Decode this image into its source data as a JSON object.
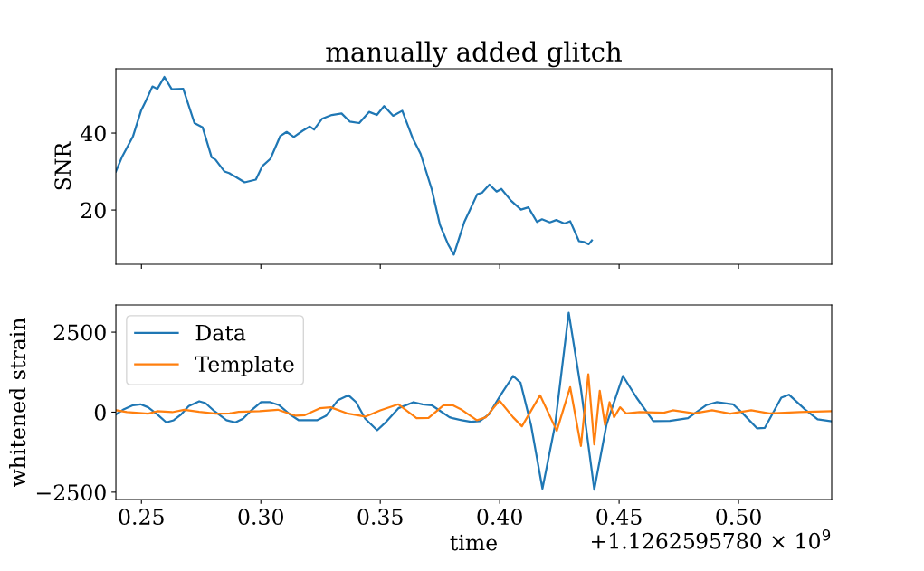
{
  "chart_data": [
    {
      "type": "line",
      "title": "manually added glitch",
      "ylabel": "SNR",
      "tick_labels": "y",
      "grid": false,
      "legend": false,
      "xlim": [
        0.2393,
        0.539
      ],
      "xticks": [
        0.25,
        0.3,
        0.35,
        0.4,
        0.45,
        0.5
      ],
      "ylim": [
        5.9,
        56.7
      ],
      "yticks": [
        20,
        40
      ],
      "series": [
        {
          "color": "#1f77b4",
          "x": [
            0.2393,
            0.2418,
            0.2465,
            0.2499,
            0.2519,
            0.2546,
            0.2567,
            0.2596,
            0.2627,
            0.2675,
            0.2722,
            0.2756,
            0.2794,
            0.281,
            0.2848,
            0.2867,
            0.2898,
            0.2932,
            0.2979,
            0.3006,
            0.304,
            0.3081,
            0.3108,
            0.3138,
            0.3175,
            0.3205,
            0.3223,
            0.3256,
            0.3297,
            0.3338,
            0.3372,
            0.3412,
            0.3453,
            0.3486,
            0.3516,
            0.3554,
            0.3592,
            0.3635,
            0.3669,
            0.3716,
            0.375,
            0.3784,
            0.3808,
            0.3852,
            0.3906,
            0.3926,
            0.3957,
            0.3987,
            0.4007,
            0.4048,
            0.4089,
            0.412,
            0.4156,
            0.4177,
            0.421,
            0.4237,
            0.4271,
            0.4295,
            0.4332,
            0.4352,
            0.4373,
            0.4386
          ],
          "values": [
            30.0,
            33.7,
            39.2,
            45.9,
            48.4,
            52.1,
            51.5,
            54.6,
            51.4,
            51.5,
            42.6,
            41.5,
            33.7,
            33.1,
            30.0,
            29.6,
            28.5,
            27.2,
            27.9,
            31.4,
            33.3,
            39.2,
            40.3,
            39.0,
            40.6,
            41.7,
            40.9,
            43.7,
            44.7,
            45.1,
            43.0,
            42.6,
            45.5,
            44.7,
            47.0,
            44.5,
            45.8,
            38.8,
            34.6,
            25.3,
            16.1,
            11.1,
            8.4,
            16.9,
            24.1,
            24.5,
            26.6,
            24.8,
            25.5,
            22.4,
            20.1,
            20.7,
            16.9,
            17.6,
            16.8,
            17.4,
            16.5,
            17.1,
            11.9,
            11.7,
            11.1,
            12.1
          ]
        }
      ]
    },
    {
      "type": "line",
      "xlabel": "time",
      "ylabel": "whitened strain",
      "grid": false,
      "legend": "top left",
      "xlim": [
        0.2393,
        0.539
      ],
      "xticks": [
        0.25,
        {
          "value": 0.3,
          "label": "0.30"
        },
        0.35,
        {
          "value": 0.4,
          "label": "0.40"
        },
        0.45,
        {
          "value": 0.5,
          "label": "0.50"
        }
      ],
      "ylim": [
        -2730,
        3350
      ],
      "yticks": [
        {
          "value": -2500,
          "label": "−2500"
        },
        0,
        2500
      ],
      "annotations": [
        "+1.1262595780 × 10$^{9}$"
      ],
      "series": [
        {
          "name": "Data",
          "color": "#1f77b4",
          "x": [
            0.2395,
            0.2427,
            0.2465,
            0.2496,
            0.2528,
            0.2566,
            0.2604,
            0.2635,
            0.2667,
            0.2698,
            0.2742,
            0.2768,
            0.2806,
            0.2856,
            0.2894,
            0.2925,
            0.2963,
            0.3001,
            0.3039,
            0.3077,
            0.3121,
            0.3159,
            0.3235,
            0.3273,
            0.3323,
            0.3367,
            0.3399,
            0.3437,
            0.3487,
            0.3525,
            0.3576,
            0.3639,
            0.3677,
            0.3715,
            0.3753,
            0.379,
            0.3803,
            0.3841,
            0.3879,
            0.3917,
            0.3955,
            0.4005,
            0.4056,
            0.4087,
            0.4131,
            0.4179,
            0.4232,
            0.4289,
            0.434,
            0.4396,
            0.4447,
            0.4516,
            0.4573,
            0.4643,
            0.4712,
            0.4788,
            0.4864,
            0.4908,
            0.4977,
            0.5015,
            0.5078,
            0.511,
            0.5179,
            0.5211,
            0.528,
            0.5331,
            0.5388
          ],
          "values": [
            -66,
            94,
            217,
            245,
            151,
            -66,
            -320,
            -254,
            -66,
            188,
            339,
            283,
            28,
            -254,
            -320,
            -207,
            75,
            311,
            311,
            217,
            -66,
            -254,
            -254,
            -113,
            377,
            527,
            311,
            -207,
            -565,
            -301,
            122,
            311,
            245,
            217,
            28,
            -160,
            -188,
            -254,
            -301,
            -283,
            -66,
            546,
            1130,
            923,
            -396,
            -2392,
            -396,
            3108,
            735,
            -2420,
            -396,
            1130,
            452,
            -283,
            -273,
            -188,
            217,
            311,
            245,
            -19,
            -509,
            -490,
            452,
            546,
            75,
            -226,
            -283
          ]
        },
        {
          "name": "Template",
          "color": "#ff7f0e",
          "x": [
            0.2395,
            0.2439,
            0.2528,
            0.2566,
            0.2629,
            0.2679,
            0.2742,
            0.2812,
            0.2869,
            0.2907,
            0.2995,
            0.3071,
            0.3146,
            0.3184,
            0.3247,
            0.3292,
            0.3361,
            0.3437,
            0.35,
            0.3576,
            0.3652,
            0.3702,
            0.3765,
            0.3803,
            0.3841,
            0.3904,
            0.3942,
            0.3999,
            0.4056,
            0.4093,
            0.4169,
            0.4239,
            0.4295,
            0.434,
            0.4371,
            0.4396,
            0.4419,
            0.4441,
            0.446,
            0.4479,
            0.4504,
            0.4529,
            0.4586,
            0.4687,
            0.4725,
            0.4813,
            0.4889,
            0.4965,
            0.5053,
            0.5129,
            0.5255,
            0.5388
          ],
          "values": [
            57,
            0,
            -47,
            28,
            0,
            75,
            9,
            -47,
            -38,
            9,
            28,
            75,
            -113,
            -94,
            122,
            151,
            -38,
            -141,
            57,
            245,
            -188,
            -179,
            217,
            217,
            75,
            -254,
            -160,
            358,
            -160,
            -443,
            527,
            -584,
            782,
            -1055,
            1187,
            -1008,
            669,
            -396,
            311,
            -160,
            151,
            -38,
            0,
            -19,
            57,
            -38,
            57,
            -47,
            57,
            -38,
            0,
            28
          ]
        }
      ]
    }
  ]
}
